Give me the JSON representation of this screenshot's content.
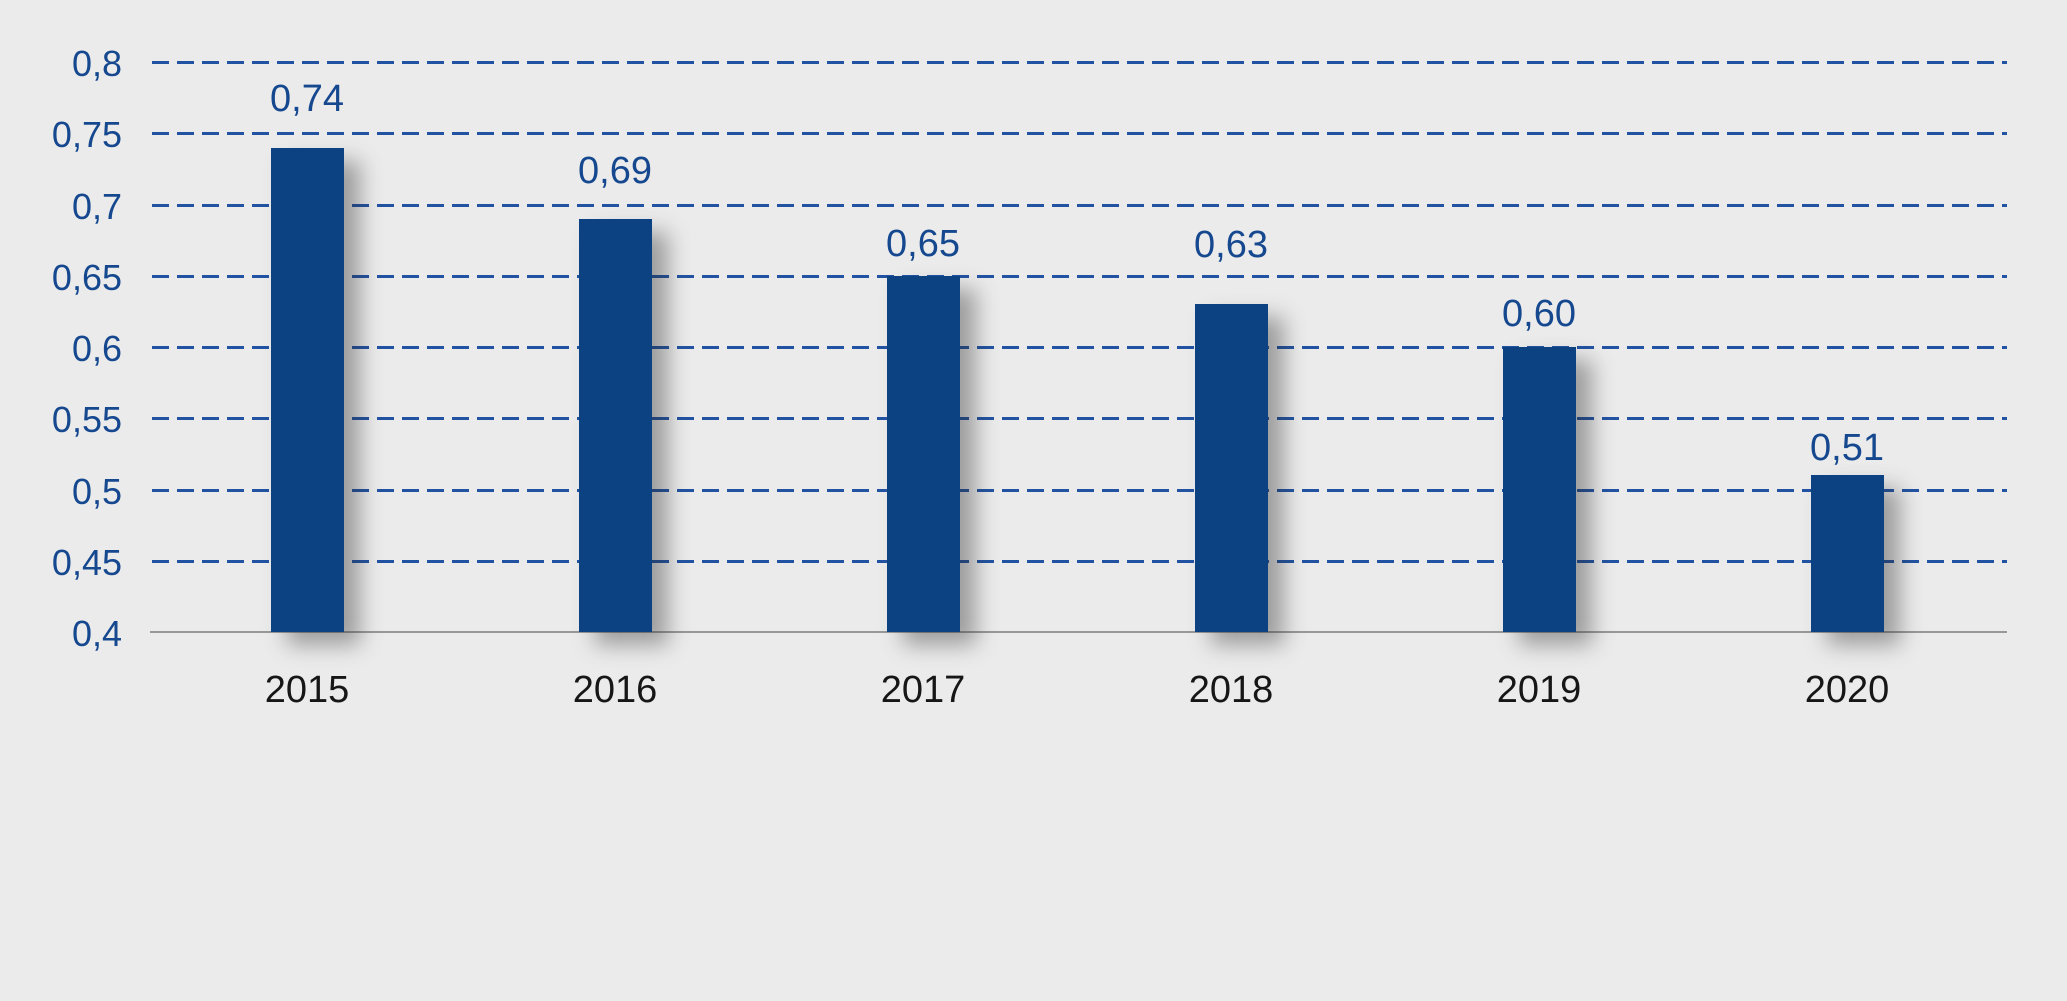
{
  "chart_data": {
    "type": "bar",
    "title": "",
    "xlabel": "",
    "ylabel": "",
    "categories": [
      "2015",
      "2016",
      "2017",
      "2018",
      "2019",
      "2020"
    ],
    "values": [
      0.74,
      0.69,
      0.65,
      0.63,
      0.6,
      0.51
    ],
    "value_labels": [
      "0,74",
      "0,69",
      "0,65",
      "0,63",
      "0,60",
      "0,51"
    ],
    "decimal_separator": ",",
    "ylim": [
      0.4,
      0.8
    ],
    "yticks": [
      {
        "label": "0,8",
        "value": 0.8
      },
      {
        "label": "0,75",
        "value": 0.75
      },
      {
        "label": "0,7",
        "value": 0.7
      },
      {
        "label": "0,65",
        "value": 0.65
      },
      {
        "label": "0,6",
        "value": 0.6
      },
      {
        "label": "0,55",
        "value": 0.55
      },
      {
        "label": "0,5",
        "value": 0.5
      },
      {
        "label": "0,45",
        "value": 0.45
      },
      {
        "label": "0,4",
        "value": 0.4
      }
    ],
    "grid": "horizontal-dashed",
    "legend": "none",
    "bar_shadow": true,
    "colors": {
      "background": "#ebebeb",
      "bar": "#0c4281",
      "grid_line": "#2253a3",
      "tick_label": "#15488f",
      "value_label": "#15488f",
      "category_label": "#161616",
      "baseline": "#97989a"
    }
  }
}
